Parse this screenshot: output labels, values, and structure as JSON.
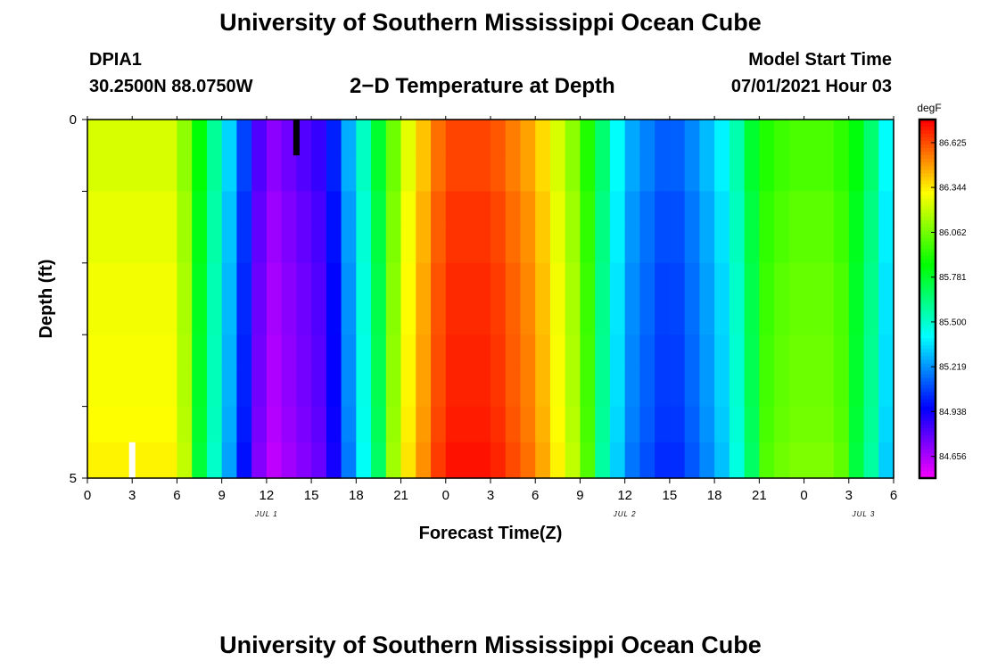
{
  "header": {
    "title": "University of Southern Mississippi Ocean Cube",
    "station": "DPIA1",
    "coords": "30.2500N  88.0750W",
    "plot_title": "2−D Temperature at Depth",
    "model_label": "Model Start Time",
    "model_time": "07/01/2021 Hour 03"
  },
  "footer": {
    "title": "University of Southern Mississippi Ocean Cube"
  },
  "chart_data": {
    "type": "heatmap",
    "title": "2−D Temperature at Depth",
    "xlabel": "Forecast Time(Z)",
    "ylabel": "Depth (ft)",
    "colorbar_unit": "degF",
    "x_ticks": [
      "0",
      "3",
      "6",
      "9",
      "12",
      "15",
      "18",
      "21",
      "0",
      "3",
      "6",
      "9",
      "12",
      "15",
      "18",
      "21",
      "0",
      "3",
      "6"
    ],
    "date_labels": [
      {
        "label": "JUL 1",
        "at_hour": 12
      },
      {
        "label": "JUL 2",
        "at_hour": 36
      },
      {
        "label": "JUL 3",
        "at_hour": 52
      }
    ],
    "y_ticks": [
      "0",
      "5"
    ],
    "y_range": [
      0,
      5
    ],
    "x_range_hours": [
      0,
      54
    ],
    "colorbar_ticks": [
      "86.625",
      "86.344",
      "86.062",
      "85.781",
      "85.500",
      "85.219",
      "84.938",
      "84.656"
    ],
    "color_range": [
      84.52,
      86.77
    ],
    "markers": [
      {
        "hour": 14,
        "depth_top": 0,
        "depth_bottom": 0.5,
        "color": "#000000"
      },
      {
        "hour": 3,
        "depth_top": 4.5,
        "depth_bottom": 5,
        "color": "#ffffff"
      }
    ],
    "profile_hours": [
      0,
      6,
      12,
      16,
      19,
      21,
      24,
      27,
      30,
      33,
      36,
      39,
      41,
      43,
      45,
      47,
      50,
      52,
      54
    ],
    "profile_temps": [
      86.25,
      86.25,
      84.7,
      84.9,
      85.65,
      86.2,
      86.65,
      86.65,
      86.45,
      86.05,
      85.3,
      85.1,
      85.25,
      85.45,
      85.9,
      86.0,
      86.0,
      85.8,
      85.3
    ],
    "depth_rows": [
      0.25,
      0.75,
      1.25,
      1.75,
      2.25,
      2.75,
      3.25,
      3.75,
      4.25,
      4.75
    ],
    "depth_offsets": [
      0.0,
      0.0,
      0.05,
      0.05,
      0.08,
      0.08,
      0.1,
      0.1,
      0.12,
      0.15
    ]
  }
}
